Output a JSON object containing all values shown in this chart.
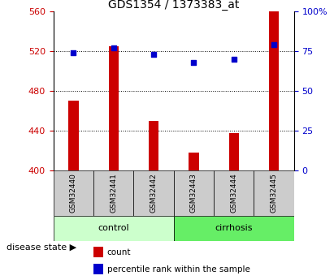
{
  "title": "GDS1354 / 1373383_at",
  "samples": [
    "GSM32440",
    "GSM32441",
    "GSM32442",
    "GSM32443",
    "GSM32444",
    "GSM32445"
  ],
  "counts": [
    470,
    525,
    450,
    418,
    438,
    560
  ],
  "percentiles": [
    74,
    77,
    73,
    68,
    70,
    79
  ],
  "baseline": 400,
  "ylim_left": [
    400,
    560
  ],
  "ylim_right": [
    0,
    100
  ],
  "yticks_left": [
    400,
    440,
    480,
    520,
    560
  ],
  "yticks_right": [
    0,
    25,
    50,
    75,
    100
  ],
  "bar_color": "#cc0000",
  "dot_color": "#0000cc",
  "control_label": "control",
  "cirrhosis_label": "cirrhosis",
  "control_bg": "#ccffcc",
  "cirrhosis_bg": "#66ee66",
  "sample_box_bg": "#cccccc",
  "disease_label": "disease state",
  "legend_count": "count",
  "legend_percentile": "percentile rank within the sample",
  "title_fontsize": 10,
  "axis_fontsize": 8,
  "tick_color_left": "#cc0000",
  "tick_color_right": "#0000cc",
  "bar_width": 0.25
}
